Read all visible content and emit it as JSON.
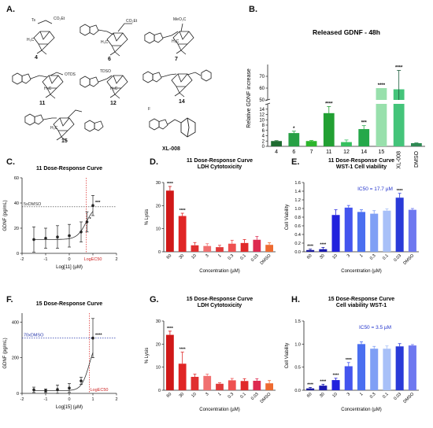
{
  "panels": {
    "A": "A.",
    "B": "B.",
    "C": "C.",
    "D": "D.",
    "E": "E.",
    "F": "F.",
    "G": "G.",
    "H": "H."
  },
  "molecules": {
    "labels": [
      "4",
      "6",
      "7",
      "11",
      "12",
      "14",
      "15",
      "XL-008"
    ],
    "fragments": [
      "Ts",
      "CO₂Et",
      "CO₂Et",
      "MeO₂C",
      "OTDS",
      "TDSO",
      "F",
      "H₃C",
      "H₃C",
      "H₃C",
      "H₃C",
      "H₃C",
      "H₃C"
    ]
  },
  "chart_data": [
    {
      "id": "B",
      "type": "bar",
      "title": "Released GDNF - 48h",
      "ylabel": "Relative GDNF increase",
      "categories": [
        "4",
        "6",
        "7",
        "11",
        "12",
        "14",
        "15",
        "XL-008",
        "DMSO"
      ],
      "values": [
        2,
        5,
        2,
        12.5,
        1.6,
        6.5,
        60,
        59,
        1.2
      ],
      "errors": [
        0.15,
        0.7,
        0.2,
        2.5,
        0.8,
        1.3,
        0,
        16,
        0.1
      ],
      "significance": [
        "",
        "*",
        "",
        "****",
        "",
        "***",
        "****",
        "****",
        ""
      ],
      "yticks_lower": [
        0,
        2,
        4,
        6,
        8,
        10,
        12,
        14
      ],
      "yticks_upper": [
        50,
        60,
        70
      ],
      "ylim_lower": [
        0,
        16
      ],
      "ylim_upper": [
        50,
        80
      ],
      "axis_break": true,
      "colors": [
        "#1e6b30",
        "#27a045",
        "#2cb52c",
        "#22a033",
        "#36c05f",
        "#25a84a",
        "#98e0ac",
        "#44c47a",
        "#2f8a54"
      ]
    },
    {
      "id": "C",
      "type": "scatter",
      "title": "11 Dose-Response Curve",
      "xlabel": "Log[11] (µM)",
      "ylabel": "GDNF (pg/mL)",
      "x": [
        -1.5,
        -1,
        -0.5,
        0,
        0.5,
        0.75,
        1
      ],
      "y": [
        11,
        12,
        13,
        14,
        17,
        25,
        38
      ],
      "errors": [
        10,
        8,
        9,
        9,
        8,
        8,
        8
      ],
      "significance": [
        "",
        "",
        "",
        "",
        "",
        "*",
        "***"
      ],
      "xticks": [
        -2,
        -1,
        0,
        1,
        2
      ],
      "xtick_labels": [
        "-2",
        "-1",
        "0",
        "LogEC50",
        "2"
      ],
      "yticks": [
        0,
        20,
        40,
        60
      ],
      "xlim": [
        -2,
        2
      ],
      "ylim": [
        0,
        60
      ],
      "reference_line": {
        "label": "5xDMSO",
        "y": 37
      },
      "ec50_x": 0.72
    },
    {
      "id": "D",
      "type": "bar",
      "title": "11 Dose-Response Curve",
      "subtitle": "LDH Cytotoxicity",
      "xlabel": "Concentration (µM)",
      "ylabel": "% Lysis",
      "categories": [
        "60",
        "30",
        "10",
        "3",
        "1",
        "0.3",
        "0.1",
        "0.03",
        "DMSO"
      ],
      "values": [
        26.5,
        15.5,
        2.8,
        2.5,
        2.0,
        3.5,
        3.8,
        5.2,
        3.0
      ],
      "errors": [
        1.8,
        1.2,
        1.2,
        1.0,
        0.8,
        1.5,
        1.5,
        1.4,
        0.9
      ],
      "significance": [
        "****",
        "****",
        "",
        "",
        "",
        "",
        "",
        "",
        ""
      ],
      "yticks": [
        0,
        10,
        20,
        30
      ],
      "ylim": [
        0,
        30
      ],
      "colors": [
        "#d01818",
        "#e02525",
        "#e03030",
        "#f07070",
        "#e03a3a",
        "#ee5050",
        "#e02a2a",
        "#dd2a50",
        "#ee6a30"
      ]
    },
    {
      "id": "E",
      "type": "bar",
      "title": "11 Dose-Response Curve",
      "subtitle": "WST-1 Cell viability",
      "xlabel": "Concentration (µM)",
      "ylabel": "Cell Viability",
      "annotation": "IC50 = 17.7 µM",
      "categories": [
        "60",
        "30",
        "10",
        "3",
        "1",
        "0.3",
        "0.1",
        "0.03",
        "DMSO"
      ],
      "values": [
        0.04,
        0.06,
        0.85,
        1.02,
        0.92,
        0.88,
        0.95,
        1.25,
        0.97
      ],
      "errors": [
        0.02,
        0.04,
        0.12,
        0.05,
        0.05,
        0.07,
        0.04,
        0.1,
        0.03
      ],
      "significance": [
        "****",
        "****",
        "",
        "",
        "",
        "",
        "",
        "****",
        ""
      ],
      "yticks": [
        0.0,
        0.2,
        0.4,
        0.6,
        0.8,
        1.0,
        1.2,
        1.4,
        1.6
      ],
      "ylim": [
        0,
        1.6
      ],
      "colors": [
        "#1a1aa0",
        "#1a1ab0",
        "#2222dd",
        "#4455ee",
        "#4a6ff0",
        "#7f9ff5",
        "#a8c0f8",
        "#2a3ad8",
        "#6e78f0"
      ]
    },
    {
      "id": "F",
      "type": "scatter",
      "title": "15 Dose-Response Curve",
      "xlabel": "Log[15] (µM)",
      "ylabel": "GDNF (pg/mL)",
      "x": [
        -1.5,
        -1,
        -0.5,
        0,
        0.5,
        1
      ],
      "y": [
        20,
        15,
        22,
        30,
        70,
        310
      ],
      "errors": [
        15,
        10,
        25,
        25,
        20,
        110
      ],
      "significance": [
        "",
        "",
        "",
        "",
        "",
        "****"
      ],
      "xticks": [
        -2,
        -1,
        0,
        1,
        2
      ],
      "xtick_labels": [
        "-2",
        "-1",
        "0",
        "1",
        "2"
      ],
      "yticks": [
        0,
        200,
        400
      ],
      "xlim": [
        -2,
        2
      ],
      "ylim": [
        0,
        450
      ],
      "reference_line": {
        "label": "70xDMSO",
        "y": 310
      },
      "ec50_label": "LogEC50",
      "ec50_x": 0.85
    },
    {
      "id": "G",
      "type": "bar",
      "title": "15 Dose-Response Curve",
      "subtitle": "LDH Cytotoxicity",
      "xlabel": "Concentration (µM)",
      "ylabel": "% Lysis",
      "categories": [
        "60",
        "30",
        "10",
        "3",
        "1",
        "0.3",
        "0.1",
        "0.03",
        "DMSO"
      ],
      "values": [
        24,
        11.5,
        5.8,
        6.2,
        2.8,
        4.3,
        4.0,
        4.1,
        3.0
      ],
      "errors": [
        1.6,
        5,
        1.2,
        0.8,
        0.4,
        0.8,
        1.0,
        0.9,
        1.2
      ],
      "significance": [
        "****",
        "****",
        "",
        "",
        "",
        "",
        "",
        "",
        ""
      ],
      "yticks": [
        0,
        10,
        20,
        30
      ],
      "ylim": [
        0,
        30
      ],
      "colors": [
        "#d01818",
        "#e02525",
        "#e03030",
        "#f07070",
        "#e03a3a",
        "#ee5050",
        "#e02a2a",
        "#dd2a50",
        "#ee6a30"
      ]
    },
    {
      "id": "H",
      "type": "bar",
      "title": "15 Dose-Response Curve",
      "subtitle": "Cell viability WST-1",
      "xlabel": "Concentration (µM)",
      "ylabel": "Cell Viability",
      "annotation": "IC50 = 3.5 µM",
      "categories": [
        "60",
        "30",
        "10",
        "3",
        "1",
        "0.3",
        "0.1",
        "0.03",
        "DMSO"
      ],
      "values": [
        0.04,
        0.1,
        0.22,
        0.52,
        1.0,
        0.9,
        0.9,
        0.95,
        0.97
      ],
      "errors": [
        0.02,
        0.03,
        0.04,
        0.08,
        0.05,
        0.05,
        0.06,
        0.06,
        0.02
      ],
      "significance": [
        "****",
        "****",
        "****",
        "****",
        "",
        "",
        "",
        "",
        ""
      ],
      "yticks": [
        0.0,
        0.5,
        1.0,
        1.5
      ],
      "ylim": [
        0,
        1.5
      ],
      "colors": [
        "#1a1aa0",
        "#1a1ab0",
        "#2222dd",
        "#4455ee",
        "#4a6ff0",
        "#7f9ff5",
        "#a8c0f8",
        "#2a3ad8",
        "#6e78f0"
      ]
    }
  ]
}
